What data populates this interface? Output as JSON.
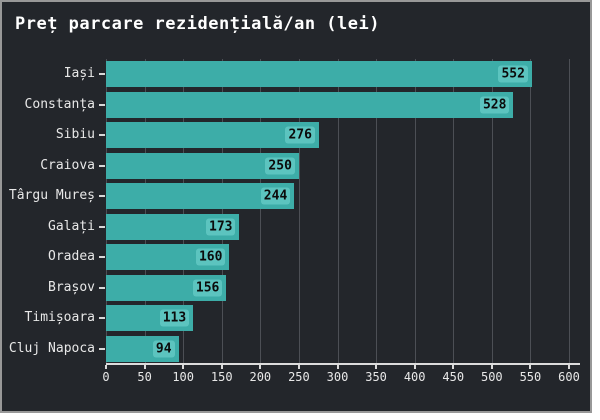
{
  "title": "Preț parcare rezidențială/an (lei)",
  "chart_data": {
    "type": "bar",
    "orientation": "horizontal",
    "title": "Preț parcare rezidențială/an (lei)",
    "xlabel": "",
    "ylabel": "",
    "categories": [
      "Iași",
      "Constanța",
      "Sibiu",
      "Craiova",
      "Târgu Mureș",
      "Galați",
      "Oradea",
      "Brașov",
      "Timișoara",
      "Cluj Napoca"
    ],
    "values": [
      552,
      528,
      276,
      250,
      244,
      173,
      160,
      156,
      113,
      94
    ],
    "xlim": [
      0,
      600
    ],
    "xticks": [
      0,
      50,
      100,
      150,
      200,
      250,
      300,
      350,
      400,
      450,
      500,
      550,
      600
    ],
    "grid": true,
    "legend": false,
    "colors": {
      "background": "#23262b",
      "bar": "#3dada8",
      "value_label_bg": "#5cc4bf",
      "value_label_text": "#0b0b0b",
      "grid": "#4c4f55",
      "axis": "#dcdcdc",
      "tick_text": "#e8e8e8",
      "title_text": "#ffffff",
      "figure_border": "#989898"
    }
  }
}
